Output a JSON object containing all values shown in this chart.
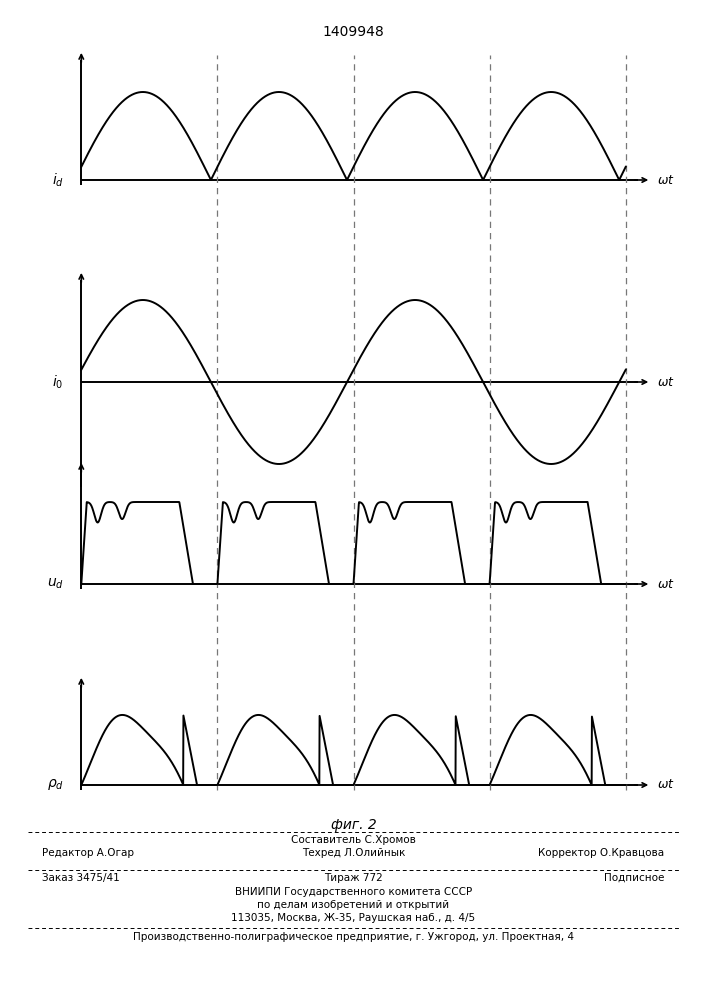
{
  "title": "1409948",
  "fig_caption": "фиг. 2",
  "background_color": "#ffffff",
  "line_color": "#000000",
  "dashed_color": "#777777",
  "panel_labels": [
    "$i_d$",
    "$i_0$",
    "$u_d$",
    "$\\rho_d$"
  ],
  "wt_label": "$\\omega t$",
  "footer": {
    "line1_center": "Составитель С.Хромов",
    "line2_left": "Редактор А.Огар",
    "line2_center": "Техред Л.Олийнык",
    "line2_right": "Корректор О.Кравцова",
    "line3_left": "Заказ 3475/41",
    "line3_center": "Тираж 772",
    "line3_right": "Подписное",
    "line4": "ВНИИПИ Государственного комитета СССР",
    "line5": "по делам изобретений и открытий",
    "line6": "113035, Москва, Ж-35, Раушская наб., д. 4/5",
    "line7": "Производственно-полиграфическое предприятие, г. Ужгород, ул. Проектная, 4"
  }
}
